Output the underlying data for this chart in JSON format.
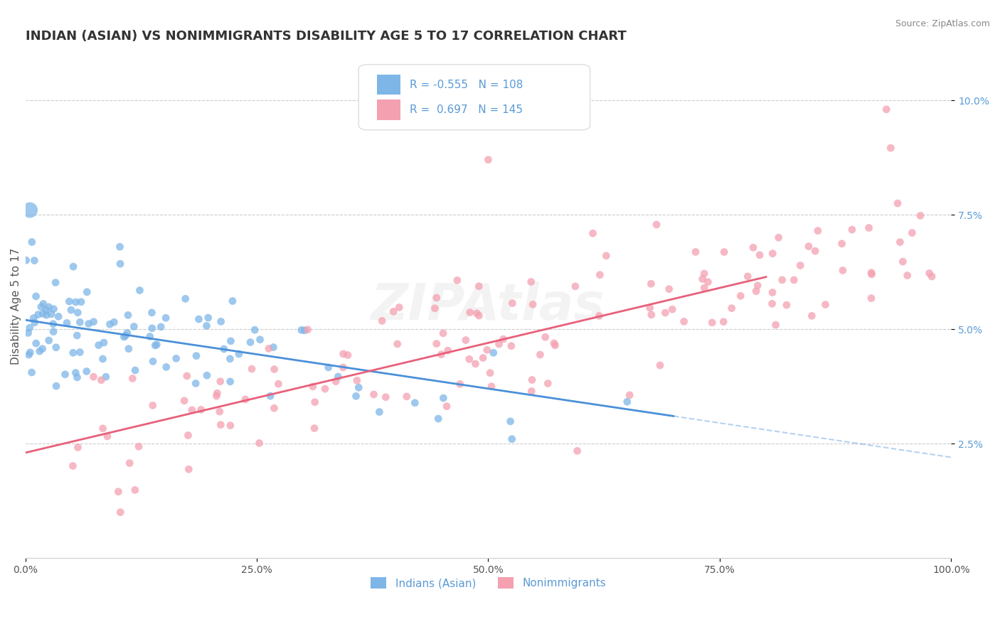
{
  "title": "INDIAN (ASIAN) VS NONIMMIGRANTS DISABILITY AGE 5 TO 17 CORRELATION CHART",
  "source": "Source: ZipAtlas.com",
  "xlabel": "",
  "ylabel": "Disability Age 5 to 17",
  "xlim": [
    0,
    100
  ],
  "ylim": [
    0,
    11
  ],
  "yticks": [
    2.5,
    5.0,
    7.5,
    10.0
  ],
  "ytick_labels": [
    "2.5%",
    "5.0%",
    "7.5%",
    "10.0%"
  ],
  "xticks": [
    0,
    25,
    50,
    75,
    100
  ],
  "xtick_labels": [
    "0.0%",
    "25.0%",
    "50.0%",
    "75.0%",
    "100.0%"
  ],
  "blue_color": "#7EB6E8",
  "pink_color": "#F4A0B0",
  "blue_line_color": "#4A90D9",
  "pink_line_color": "#E8607A",
  "blue_R": -0.555,
  "blue_N": 108,
  "pink_R": 0.697,
  "pink_N": 145,
  "blue_intercept": 5.2,
  "blue_slope": -0.03,
  "pink_intercept": 2.3,
  "pink_slope": 0.048,
  "legend_label_blue": "Indians (Asian)",
  "legend_label_pink": "Nonimmigrants",
  "background_color": "#FFFFFF",
  "watermark": "ZIPAtlas",
  "title_fontsize": 13,
  "axis_label_fontsize": 11,
  "tick_fontsize": 10,
  "blue_seed": 42,
  "pink_seed": 7
}
